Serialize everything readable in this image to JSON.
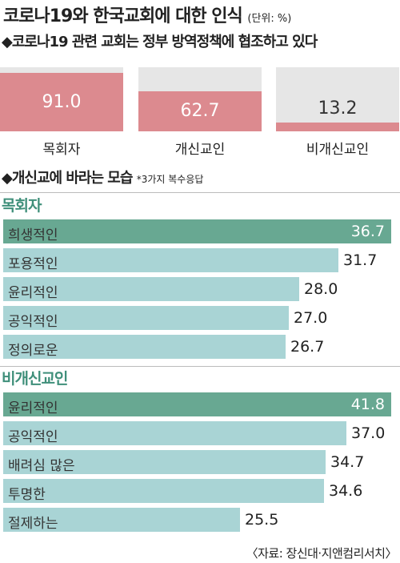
{
  "title": "코로나19와 한국교회에 대한 인식",
  "unit": "(단위: %)",
  "section1": {
    "title": "◆코로나19 관련 교회는 정부 방역정책에 협조하고 있다"
  },
  "section2": {
    "title": "◆개신교에 바라는 모습",
    "note": "*3가지 복수응답"
  },
  "source": "〈자료: 장신대·지앤컴리서치〉",
  "colors": {
    "pink": "#dc8a8f",
    "grey": "#e6e6e6",
    "dark_green": "#68a892",
    "light_teal": "#a9d4d5",
    "group_label": "#3f8f7a"
  },
  "chart_data": [
    {
      "type": "bar",
      "title": "◆코로나19 관련 교회는 정부 방역정책에 협조하고 있다",
      "categories": [
        "목회자",
        "개신교인",
        "비개신교인"
      ],
      "values": [
        91.0,
        62.7,
        13.2
      ],
      "ylim": [
        0,
        100
      ]
    },
    {
      "type": "bar",
      "orientation": "horizontal",
      "title": "목회자",
      "categories": [
        "희생적인",
        "포용적인",
        "윤리적인",
        "공익적인",
        "정의로운"
      ],
      "values": [
        36.7,
        31.7,
        28.0,
        27.0,
        26.7
      ],
      "highlight_index": 0
    },
    {
      "type": "bar",
      "orientation": "horizontal",
      "title": "비개신교인",
      "categories": [
        "윤리적인",
        "공익적인",
        "배려심 많은",
        "투명한",
        "절제하는"
      ],
      "values": [
        41.8,
        37.0,
        34.7,
        34.6,
        25.5
      ],
      "highlight_index": 0
    }
  ]
}
